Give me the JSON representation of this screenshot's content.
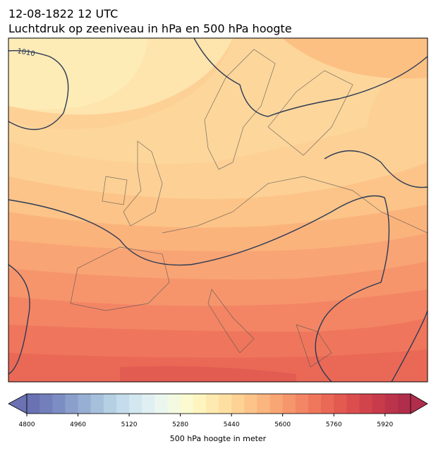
{
  "header": {
    "title": "12-08-1822 12 UTC",
    "subtitle": "Luchtdruk op zeeniveau in hPa en 500 hPa hoogte"
  },
  "map": {
    "isobar_label": "1010"
  },
  "colorbar": {
    "label": "500 hPa hoogte in meter",
    "lim": [
      4800,
      6000
    ],
    "ticks": [
      4800,
      4960,
      5120,
      5280,
      5440,
      5600,
      5760,
      5920
    ],
    "colors": [
      "#6a72b3",
      "#727fbb",
      "#7b8dc3",
      "#8a9fcb",
      "#97afd3",
      "#a6c0db",
      "#b5cfe3",
      "#c4dceb",
      "#d2e7f0",
      "#e0f0f2",
      "#ebf6ee",
      "#f4f9e2",
      "#fbfad0",
      "#fef4bf",
      "#feeab0",
      "#fedfa2",
      "#fdd295",
      "#fcc489",
      "#fbb57e",
      "#f9a675",
      "#f6966c",
      "#f38664",
      "#ef775c",
      "#ea6856",
      "#e35a51",
      "#dc4e4e",
      "#d2444c",
      "#c73b4b",
      "#bc344b",
      "#b02e4b"
    ]
  }
}
